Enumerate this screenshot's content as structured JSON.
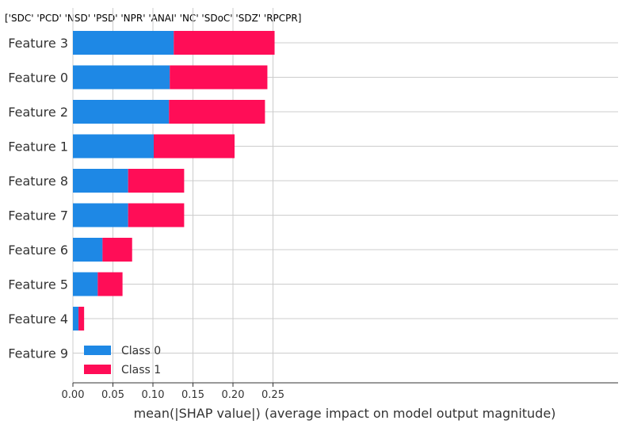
{
  "chart_data": {
    "type": "bar",
    "stacked": true,
    "orientation": "horizontal",
    "title": "['SDC' 'PCD' 'NSD' 'PSD' 'NPR' 'ANAI' 'NC' 'SDoC' 'SDZ' 'RPCPR]",
    "categories": [
      "Feature 3",
      "Feature 0",
      "Feature 2",
      "Feature 1",
      "Feature 8",
      "Feature 7",
      "Feature 6",
      "Feature 5",
      "Feature 4",
      "Feature 9"
    ],
    "series": [
      {
        "name": "Class 0",
        "color": "#1e88e5",
        "values": [
          0.126,
          0.121,
          0.12,
          0.101,
          0.069,
          0.069,
          0.037,
          0.031,
          0.007,
          0.0
        ]
      },
      {
        "name": "Class 1",
        "color": "#ff0d57",
        "values": [
          0.126,
          0.122,
          0.12,
          0.101,
          0.07,
          0.07,
          0.037,
          0.031,
          0.007,
          0.0
        ]
      }
    ],
    "xticks": [
      0.0,
      0.05,
      0.1,
      0.15,
      0.2,
      0.25
    ],
    "xtick_labels": [
      "0.00",
      "0.05",
      "0.10",
      "0.15",
      "0.20",
      "0.25"
    ],
    "xlim": [
      0.0,
      0.265
    ],
    "xlabel": "mean(|SHAP value|) (average impact on model output magnitude)",
    "ylabel": "",
    "grid": true,
    "legend_position": "lower-left"
  }
}
